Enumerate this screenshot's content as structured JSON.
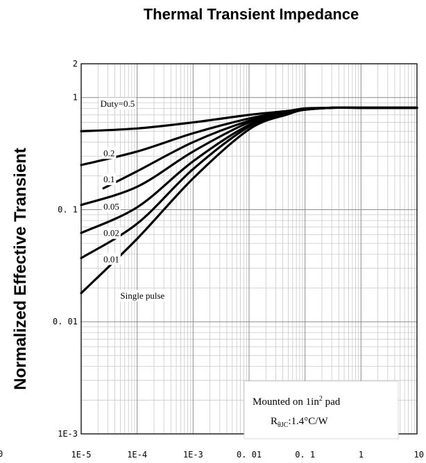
{
  "chart_data": {
    "type": "line",
    "title": "Thermal Transient Impedance",
    "ylabel": "Normalized Effective Transient",
    "xlabel": "",
    "x_scale": "log",
    "y_scale": "log",
    "xlim": [
      1e-05,
      10
    ],
    "ylim": [
      0.001,
      2
    ],
    "grid": true,
    "x_tick_labels": [
      {
        "value": 1e-05,
        "label": "1E-5"
      },
      {
        "value": 0.0001,
        "label": "1E-4"
      },
      {
        "value": 0.001,
        "label": "1E-3"
      },
      {
        "value": 0.01,
        "label": "0. 01"
      },
      {
        "value": 0.1,
        "label": "0. 1"
      },
      {
        "value": 1,
        "label": "1"
      },
      {
        "value": 10,
        "label": "10"
      }
    ],
    "y_tick_labels": [
      {
        "value": 2,
        "label": "2"
      },
      {
        "value": 1,
        "label": "1"
      },
      {
        "value": 0.1,
        "label": "0. 1"
      },
      {
        "value": 0.01,
        "label": "0. 01"
      },
      {
        "value": 0.001,
        "label": "1E-3"
      }
    ],
    "series": [
      {
        "name": "Duty=0.5",
        "label": "Duty=0.5",
        "label_at": [
          2.2e-05,
          0.83
        ],
        "points": [
          [
            1e-05,
            0.5
          ],
          [
            0.0001,
            0.53
          ],
          [
            0.001,
            0.6
          ],
          [
            0.01,
            0.7
          ],
          [
            0.05,
            0.76
          ],
          [
            0.1,
            0.8
          ],
          [
            0.3,
            0.81
          ],
          [
            1,
            0.81
          ],
          [
            10,
            0.81
          ]
        ]
      },
      {
        "name": "0.2",
        "label": "0.2",
        "label_at": [
          2.5e-05,
          0.3
        ],
        "points": [
          [
            1e-05,
            0.25
          ],
          [
            0.0001,
            0.33
          ],
          [
            0.001,
            0.48
          ],
          [
            0.01,
            0.65
          ],
          [
            0.05,
            0.75
          ],
          [
            0.1,
            0.79
          ],
          [
            0.3,
            0.81
          ],
          [
            1,
            0.81
          ],
          [
            10,
            0.81
          ]
        ]
      },
      {
        "name": "0.1",
        "label": "0.1",
        "label_at": [
          2.5e-05,
          0.175
        ],
        "points": [
          [
            2.5e-05,
            0.155
          ],
          [
            0.0001,
            0.22
          ],
          [
            0.001,
            0.4
          ],
          [
            0.01,
            0.62
          ],
          [
            0.05,
            0.74
          ],
          [
            0.1,
            0.78
          ],
          [
            0.3,
            0.81
          ],
          [
            1,
            0.81
          ],
          [
            10,
            0.81
          ]
        ]
      },
      {
        "name": "0.05",
        "label": "0.05",
        "label_at": [
          2.5e-05,
          0.1
        ],
        "points": [
          [
            1e-05,
            0.11
          ],
          [
            0.0001,
            0.16
          ],
          [
            0.001,
            0.33
          ],
          [
            0.01,
            0.6
          ],
          [
            0.05,
            0.74
          ],
          [
            0.1,
            0.78
          ],
          [
            0.3,
            0.81
          ],
          [
            1,
            0.81
          ],
          [
            10,
            0.81
          ]
        ]
      },
      {
        "name": "0.02",
        "label": "0.02",
        "label_at": [
          2.5e-05,
          0.058
        ],
        "points": [
          [
            1e-05,
            0.062
          ],
          [
            0.0001,
            0.105
          ],
          [
            0.001,
            0.27
          ],
          [
            0.01,
            0.57
          ],
          [
            0.05,
            0.73
          ],
          [
            0.1,
            0.78
          ],
          [
            0.3,
            0.81
          ],
          [
            1,
            0.81
          ],
          [
            10,
            0.81
          ]
        ]
      },
      {
        "name": "0.01",
        "label": "0.01",
        "label_at": [
          2.5e-05,
          0.034
        ],
        "points": [
          [
            1e-05,
            0.037
          ],
          [
            0.0001,
            0.075
          ],
          [
            0.001,
            0.23
          ],
          [
            0.01,
            0.55
          ],
          [
            0.05,
            0.72
          ],
          [
            0.1,
            0.78
          ],
          [
            0.3,
            0.81
          ],
          [
            1,
            0.81
          ],
          [
            10,
            0.81
          ]
        ]
      },
      {
        "name": "Single pulse",
        "label": "Single pulse",
        "label_at": [
          5e-05,
          0.016
        ],
        "points": [
          [
            1e-05,
            0.018
          ],
          [
            0.0001,
            0.055
          ],
          [
            0.001,
            0.19
          ],
          [
            0.01,
            0.52
          ],
          [
            0.05,
            0.71
          ],
          [
            0.1,
            0.78
          ],
          [
            0.3,
            0.81
          ],
          [
            1,
            0.81
          ],
          [
            10,
            0.81
          ]
        ]
      }
    ],
    "annotation": {
      "line1_main": "Mounted on 1in",
      "line1_sup": "2",
      "line1_end": " pad",
      "line2_main": "R",
      "line2_sub": "θJC",
      "line2_end": ":1.4°C/W"
    },
    "clipped_tick_label": "0"
  }
}
